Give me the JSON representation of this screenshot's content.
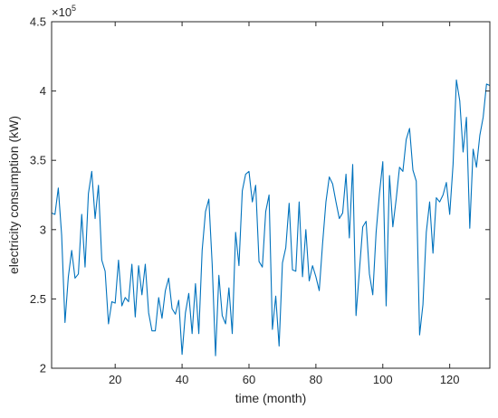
{
  "chart_data": {
    "type": "line",
    "xlabel": "time (month)",
    "ylabel": "electricity consumption (kW)",
    "xlim": [
      1,
      132
    ],
    "ylim": [
      200000,
      450000
    ],
    "xticks": [
      20,
      40,
      60,
      80,
      100,
      120
    ],
    "xtick_labels": [
      "20",
      "40",
      "60",
      "80",
      "100",
      "120"
    ],
    "yticks": [
      200000,
      250000,
      300000,
      350000,
      400000,
      450000
    ],
    "ytick_labels": [
      "2",
      "2.5",
      "3",
      "3.5",
      "4",
      "4.5"
    ],
    "y_exponent": {
      "base": "×10",
      "power": "5"
    },
    "grid": false,
    "legend": "none",
    "line_color": "#0072BD",
    "series": [
      {
        "x": [
          1,
          2,
          3,
          4,
          5,
          6,
          7,
          8,
          9,
          10,
          11,
          12,
          13,
          14,
          15,
          16,
          17,
          18,
          19,
          20,
          21,
          22,
          23,
          24,
          25,
          26,
          27,
          28,
          29,
          30,
          31,
          32,
          33,
          34,
          35,
          36,
          37,
          38,
          39,
          40,
          41,
          42,
          43,
          44,
          45,
          46,
          47,
          48,
          49,
          50,
          51,
          52,
          53,
          54,
          55,
          56,
          57,
          58,
          59,
          60,
          61,
          62,
          63,
          64,
          65,
          66,
          67,
          68,
          69,
          70,
          71,
          72,
          73,
          74,
          75,
          76,
          77,
          78,
          79,
          80,
          81,
          82,
          83,
          84,
          85,
          86,
          87,
          88,
          89,
          90,
          91,
          92,
          93,
          94,
          95,
          96,
          97,
          98,
          99,
          100,
          101,
          102,
          103,
          104,
          105,
          106,
          107,
          108,
          109,
          110,
          111,
          112,
          113,
          114,
          115,
          116,
          117,
          118,
          119,
          120,
          121,
          122,
          123,
          124,
          125,
          126,
          127,
          128,
          129,
          130,
          131,
          132
        ],
        "values": [
          312000,
          311000,
          330000,
          296000,
          233000,
          266000,
          285000,
          265000,
          268000,
          311000,
          273000,
          326000,
          342000,
          308000,
          332000,
          278000,
          270000,
          232000,
          248000,
          247000,
          278000,
          245000,
          251000,
          248000,
          275000,
          237000,
          274000,
          253000,
          275000,
          240000,
          227000,
          227000,
          251000,
          236000,
          256000,
          265000,
          243000,
          239000,
          249000,
          210000,
          240000,
          254000,
          225000,
          261000,
          225000,
          285000,
          313000,
          322000,
          275000,
          209000,
          267000,
          238000,
          232000,
          258000,
          225000,
          298000,
          274000,
          328000,
          340000,
          342000,
          320000,
          332000,
          277000,
          273000,
          313000,
          325000,
          228000,
          252000,
          216000,
          276000,
          287000,
          319000,
          271000,
          270000,
          320000,
          266000,
          300000,
          263000,
          274000,
          266000,
          256000,
          290000,
          320000,
          338000,
          333000,
          320000,
          308000,
          312000,
          340000,
          294000,
          347000,
          238000,
          270000,
          302000,
          306000,
          268000,
          253000,
          298000,
          326000,
          349000,
          245000,
          339000,
          302000,
          322000,
          345000,
          342000,
          365000,
          373000,
          343000,
          335000,
          224000,
          246000,
          298000,
          320000,
          283000,
          323000,
          320000,
          325000,
          334000,
          311000,
          347000,
          408000,
          393000,
          356000,
          381000,
          301000,
          358000,
          345000,
          368000,
          381000,
          405000,
          404000
        ]
      }
    ]
  }
}
